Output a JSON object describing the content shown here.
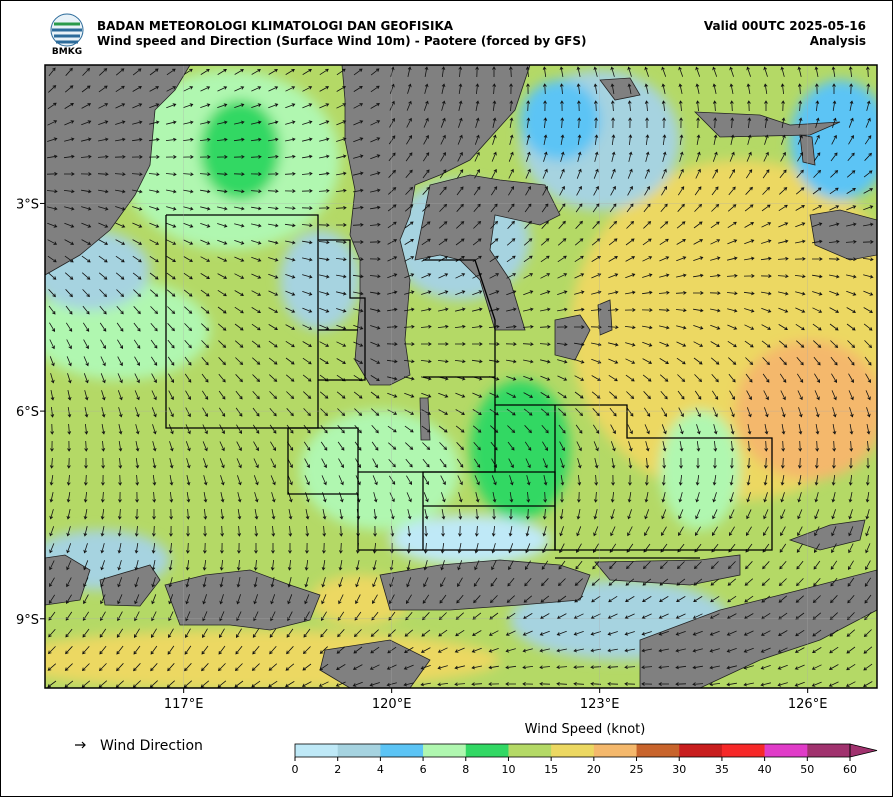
{
  "header": {
    "logo_text": "BMKG",
    "org": "BADAN METEOROLOGI KLIMATOLOGI DAN GEOFISIKA",
    "subtitle": "Wind speed and Direction (Surface Wind 10m) - Paotere (forced by GFS)",
    "valid": "Valid 00UTC 2025-05-16",
    "mode": "Analysis"
  },
  "map": {
    "xlim": [
      115,
      127
    ],
    "ylim": [
      -1,
      -10
    ],
    "xticks": [
      {
        "value": 117,
        "label": "117°E"
      },
      {
        "value": 120,
        "label": "120°E"
      },
      {
        "value": 123,
        "label": "123°E"
      },
      {
        "value": 126,
        "label": "126°E"
      }
    ],
    "yticks": [
      {
        "value": -3,
        "label": "3°S"
      },
      {
        "value": -6,
        "label": "6°S"
      },
      {
        "value": -9,
        "label": "9°S"
      }
    ],
    "grid": true
  },
  "legend": {
    "label": "Wind Direction"
  },
  "colorbar": {
    "title": "Wind Speed (knot)",
    "levels": [
      0,
      2,
      4,
      6,
      8,
      10,
      15,
      20,
      25,
      30,
      35,
      40,
      50,
      60
    ],
    "colors": [
      "#bfe9f7",
      "#a6d3e0",
      "#5cc4f5",
      "#b0f7b0",
      "#32d864",
      "#b4d966",
      "#ecd862",
      "#f4b86c",
      "#c8642c",
      "#c81e1e",
      "#f62828",
      "#e03cc8",
      "#a0326e"
    ]
  }
}
